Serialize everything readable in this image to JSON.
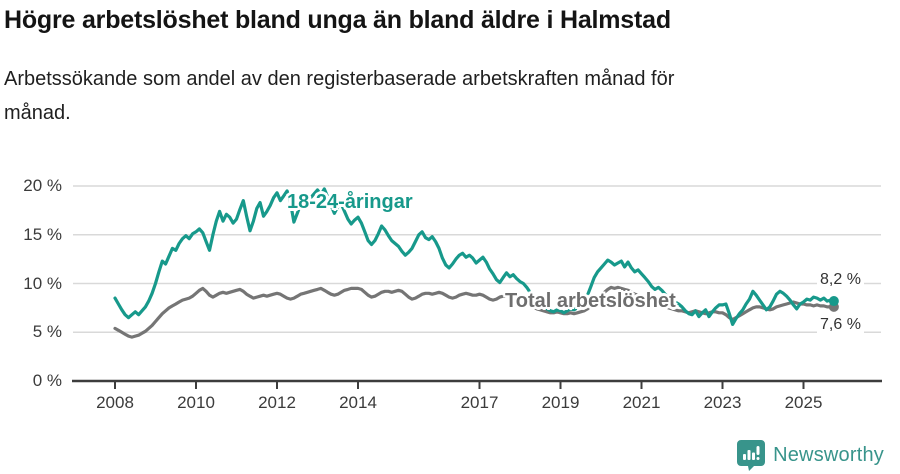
{
  "footer": {
    "brand": "Newsworthy"
  },
  "chart_data": {
    "type": "line",
    "title": "Högre arbetslöshet bland unga än bland äldre i Halmstad",
    "subtitle": "Arbetssökande som andel av den registerbaserade arbetskraften månad för månad.",
    "unit": "%",
    "frequency": "monthly",
    "grid": true,
    "legend": "inline-labels",
    "ylim": [
      0,
      20.5
    ],
    "xlim": [
      2008,
      2025.83
    ],
    "y_ticks": [
      {
        "value": 0,
        "label": "0 %"
      },
      {
        "value": 5,
        "label": "5 %"
      },
      {
        "value": 10,
        "label": "10 %"
      },
      {
        "value": 15,
        "label": "15 %"
      },
      {
        "value": 20,
        "label": "20 %"
      }
    ],
    "x_ticks": [
      {
        "year": 2008,
        "label": "2008"
      },
      {
        "year": 2010,
        "label": "2010"
      },
      {
        "year": 2012,
        "label": "2012"
      },
      {
        "year": 2014,
        "label": "2014"
      },
      {
        "year": 2017,
        "label": "2017"
      },
      {
        "year": 2019,
        "label": "2019"
      },
      {
        "year": 2021,
        "label": "2021"
      },
      {
        "year": 2023,
        "label": "2023"
      },
      {
        "year": 2025,
        "label": "2025"
      }
    ],
    "colors": {
      "youth": "#17998b",
      "total": "#757575",
      "axis": "#3d3d3d",
      "gridline": "#d9d9d9"
    },
    "series": [
      {
        "label": "18-24-åringar",
        "color": "#17998b",
        "end_label": "8,2 %",
        "end_value": 8.2,
        "values_by_year": {
          "2008": [
            8.5,
            7.9,
            7.3,
            6.8,
            6.5,
            6.8,
            7.1,
            6.8,
            7.2,
            7.6,
            8.2,
            9.0
          ],
          "2009": [
            10.0,
            11.2,
            12.3,
            12.0,
            12.8,
            13.6,
            13.4,
            14.1,
            14.6,
            14.9,
            14.6,
            15.1
          ],
          "2010": [
            15.3,
            15.6,
            15.2,
            14.3,
            13.4,
            15.0,
            16.4,
            17.4,
            16.4,
            17.1,
            16.8,
            16.2
          ],
          "2011": [
            16.6,
            17.6,
            18.5,
            16.9,
            15.4,
            16.4,
            17.7,
            18.3,
            16.9,
            17.4,
            18.0,
            18.8
          ],
          "2012": [
            19.3,
            18.5,
            19.0,
            19.5,
            18.3,
            16.3,
            17.2,
            18.1,
            18.6,
            19.0,
            18.8,
            19.2
          ],
          "2013": [
            19.6,
            19.1,
            19.7,
            18.9,
            18.0,
            17.2,
            17.9,
            18.2,
            17.4,
            16.6,
            16.1,
            16.5
          ],
          "2014": [
            16.8,
            16.2,
            15.3,
            14.4,
            14.0,
            14.4,
            15.1,
            15.9,
            15.5,
            14.9,
            14.4,
            14.1
          ],
          "2015": [
            13.8,
            13.3,
            12.9,
            13.2,
            13.6,
            14.3,
            15.0,
            15.3,
            14.7,
            14.5,
            14.8,
            14.3
          ],
          "2016": [
            13.6,
            12.6,
            11.9,
            11.6,
            12.0,
            12.5,
            12.9,
            13.1,
            12.7,
            12.9,
            12.6,
            12.1
          ],
          "2017": [
            12.4,
            12.7,
            12.2,
            11.5,
            11.0,
            10.4,
            10.1,
            10.6,
            11.1,
            10.7,
            10.9,
            10.5
          ],
          "2018": [
            10.2,
            10.0,
            9.6,
            9.1,
            8.6,
            8.2,
            7.9,
            7.6,
            7.4,
            7.2,
            7.1,
            7.3
          ],
          "2019": [
            7.2,
            7.0,
            7.2,
            7.4,
            7.3,
            7.5,
            7.8,
            8.2,
            8.8,
            9.7,
            10.6,
            11.2
          ],
          "2020": [
            11.6,
            12.0,
            12.4,
            12.2,
            11.9,
            12.1,
            12.3,
            11.7,
            12.2,
            11.6,
            11.2,
            11.4
          ],
          "2021": [
            11.0,
            10.6,
            10.2,
            9.7,
            9.4,
            9.6,
            9.3,
            8.9,
            8.6,
            8.3,
            8.1,
            7.9
          ],
          "2022": [
            7.6,
            7.2,
            6.9,
            6.8,
            7.2,
            6.6,
            7.0,
            7.3,
            6.6,
            7.1,
            7.5,
            7.8
          ],
          "2023": [
            7.8,
            7.9,
            6.9,
            5.8,
            6.4,
            6.9,
            7.3,
            7.9,
            8.4,
            9.2,
            8.8,
            8.3
          ],
          "2024": [
            7.8,
            7.3,
            7.6,
            8.2,
            8.9,
            9.2,
            9.0,
            8.7,
            8.3,
            7.8,
            7.4,
            7.9
          ],
          "2025": [
            8.1,
            8.4,
            8.3,
            8.6,
            8.5,
            8.3,
            8.5,
            8.2,
            8.3,
            8.2
          ]
        }
      },
      {
        "label": "Total arbetslöshet",
        "color": "#757575",
        "end_label": "7,6 %",
        "end_value": 7.6,
        "values_by_year": {
          "2008": [
            5.4,
            5.2,
            5.0,
            4.8,
            4.6,
            4.5,
            4.6,
            4.7,
            4.9,
            5.1,
            5.4,
            5.7
          ],
          "2009": [
            6.1,
            6.5,
            6.9,
            7.2,
            7.5,
            7.7,
            7.9,
            8.1,
            8.3,
            8.4,
            8.5,
            8.7
          ],
          "2010": [
            9.0,
            9.3,
            9.5,
            9.2,
            8.8,
            8.6,
            8.8,
            9.0,
            9.1,
            9.0,
            9.1,
            9.2
          ],
          "2011": [
            9.3,
            9.4,
            9.2,
            8.9,
            8.7,
            8.5,
            8.6,
            8.7,
            8.8,
            8.7,
            8.8,
            8.9
          ],
          "2012": [
            9.0,
            8.9,
            8.7,
            8.5,
            8.4,
            8.5,
            8.7,
            8.9,
            9.0,
            9.1,
            9.2,
            9.3
          ],
          "2013": [
            9.4,
            9.5,
            9.3,
            9.1,
            8.9,
            8.8,
            8.9,
            9.1,
            9.3,
            9.4,
            9.5,
            9.5
          ],
          "2014": [
            9.5,
            9.4,
            9.1,
            8.8,
            8.6,
            8.7,
            8.9,
            9.1,
            9.2,
            9.2,
            9.1,
            9.2
          ],
          "2015": [
            9.3,
            9.2,
            8.9,
            8.6,
            8.4,
            8.5,
            8.7,
            8.9,
            9.0,
            9.0,
            8.9,
            9.0
          ],
          "2016": [
            9.1,
            9.0,
            8.8,
            8.6,
            8.5,
            8.6,
            8.8,
            8.9,
            9.0,
            8.9,
            8.8,
            8.8
          ],
          "2017": [
            8.9,
            8.8,
            8.6,
            8.4,
            8.3,
            8.4,
            8.6,
            8.7,
            8.7,
            8.6,
            8.5,
            8.5
          ],
          "2018": [
            8.4,
            8.2,
            8.0,
            7.8,
            7.6,
            7.4,
            7.3,
            7.2,
            7.1,
            7.0,
            7.0,
            7.1
          ],
          "2019": [
            7.0,
            6.9,
            6.9,
            7.0,
            6.9,
            7.0,
            7.1,
            7.2,
            7.4,
            7.7,
            8.1,
            8.5
          ],
          "2020": [
            8.8,
            9.1,
            9.4,
            9.6,
            9.5,
            9.6,
            9.5,
            9.4,
            9.3,
            9.1,
            8.9,
            8.8
          ],
          "2021": [
            8.7,
            8.5,
            8.3,
            8.1,
            7.9,
            7.8,
            7.7,
            7.6,
            7.5,
            7.4,
            7.3,
            7.2
          ],
          "2022": [
            7.2,
            7.1,
            7.0,
            7.1,
            7.2,
            7.1,
            7.0,
            6.9,
            7.0,
            7.1,
            7.1,
            7.0
          ],
          "2023": [
            7.0,
            6.8,
            6.5,
            6.3,
            6.5,
            6.7,
            6.9,
            7.1,
            7.3,
            7.5,
            7.6,
            7.6
          ],
          "2024": [
            7.5,
            7.4,
            7.3,
            7.4,
            7.6,
            7.7,
            7.8,
            7.9,
            8.0,
            8.1,
            8.0,
            7.9
          ],
          "2025": [
            7.9,
            7.8,
            7.8,
            7.7,
            7.8,
            7.7,
            7.7,
            7.6,
            7.6,
            7.6
          ]
        }
      }
    ]
  }
}
